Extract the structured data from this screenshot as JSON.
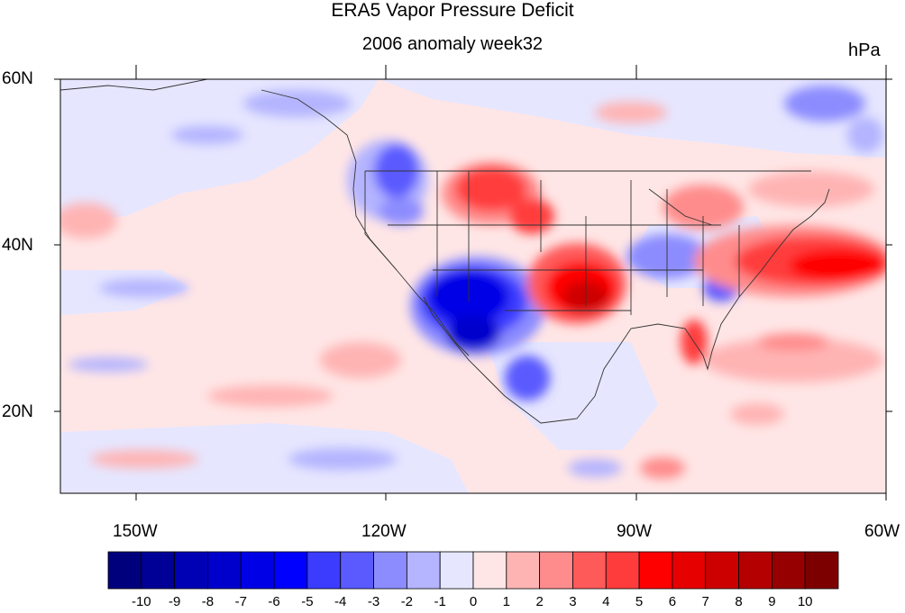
{
  "title": "ERA5 Vapor Pressure Deficit",
  "subtitle": "2006 anomaly week32",
  "units": "hPa",
  "lat_ticks": [
    {
      "label": "60N",
      "value": 60
    },
    {
      "label": "40N",
      "value": 40
    },
    {
      "label": "20N",
      "value": 20
    }
  ],
  "lon_ticks": [
    {
      "label": "150W",
      "value": -150
    },
    {
      "label": "120W",
      "value": -120
    },
    {
      "label": "90W",
      "value": -90
    },
    {
      "label": "60W",
      "value": -60
    }
  ],
  "colorbar": {
    "labels": [
      "-10",
      "-9",
      "-8",
      "-7",
      "-6",
      "-5",
      "-4",
      "-3",
      "-2",
      "-1",
      "0",
      "1",
      "2",
      "3",
      "4",
      "5",
      "6",
      "7",
      "8",
      "9",
      "10"
    ],
    "colors": [
      "#00007d",
      "#000096",
      "#0000b4",
      "#0000cd",
      "#0000e6",
      "#0000ff",
      "#3c3cff",
      "#5a5aff",
      "#8c8cff",
      "#b4b4ff",
      "#e6e6ff",
      "#ffe6e6",
      "#ffb4b4",
      "#ff8c8c",
      "#ff5a5a",
      "#ff3c3c",
      "#ff0000",
      "#e60000",
      "#cd0000",
      "#b40000",
      "#960000",
      "#7d0000"
    ]
  }
}
